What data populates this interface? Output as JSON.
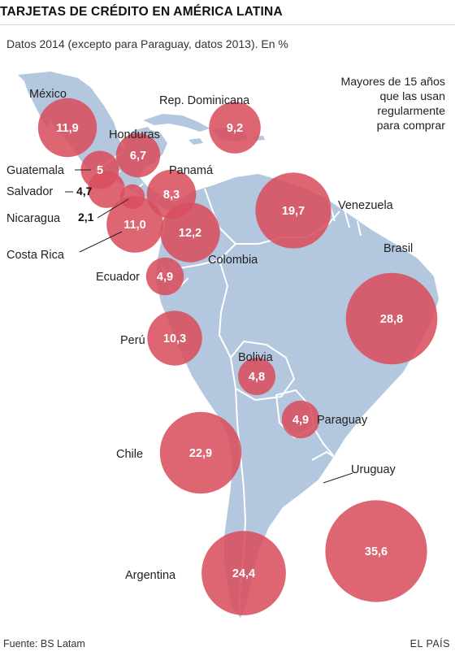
{
  "header": {
    "title": "TARJETAS DE CRÉDITO EN AMÉRICA LATINA",
    "subtitle": "Datos 2014 (excepto para Paraguay, datos 2013). En %"
  },
  "note": {
    "lines": [
      "Mayores de 15 años",
      "que las usan",
      "regularmente",
      "para comprar"
    ]
  },
  "colors": {
    "land": "#b3c7df",
    "border": "#ffffff",
    "bubble": "#d9505f",
    "bubble_text": "#ffffff",
    "label": "#222222"
  },
  "countries": [
    {
      "name": "México",
      "value": 11.9,
      "value_label": "11,9"
    },
    {
      "name": "Rep. Dominicana",
      "value": 9.2,
      "value_label": "9,2"
    },
    {
      "name": "Honduras",
      "value": 6.7,
      "value_label": "6,7"
    },
    {
      "name": "Guatemala",
      "value": 5,
      "value_label": "5"
    },
    {
      "name": "Salvador",
      "value": 4.7,
      "value_label": "4,7"
    },
    {
      "name": "Nicaragua",
      "value": 2.1,
      "value_label": "2,1"
    },
    {
      "name": "Panamá",
      "value": 8.3,
      "value_label": "8,3"
    },
    {
      "name": "Costa Rica",
      "value": 11.0,
      "value_label": "11,0"
    },
    {
      "name": "Colombia",
      "value": 12.2,
      "value_label": "12,2"
    },
    {
      "name": "Venezuela",
      "value": 19.7,
      "value_label": "19,7"
    },
    {
      "name": "Ecuador",
      "value": 4.9,
      "value_label": "4,9"
    },
    {
      "name": "Brasil",
      "value": 28.8,
      "value_label": "28,8"
    },
    {
      "name": "Perú",
      "value": 10.3,
      "value_label": "10,3"
    },
    {
      "name": "Bolivia",
      "value": 4.8,
      "value_label": "4,8"
    },
    {
      "name": "Paraguay",
      "value": 4.9,
      "value_label": "4,9"
    },
    {
      "name": "Chile",
      "value": 22.9,
      "value_label": "22,9"
    },
    {
      "name": "Uruguay",
      "value": 35.6,
      "value_label": "35,6"
    },
    {
      "name": "Argentina",
      "value": 24.4,
      "value_label": "24,4"
    }
  ],
  "footer": {
    "source": "Fuente: BS Latam",
    "brand": "EL PAÍS"
  }
}
